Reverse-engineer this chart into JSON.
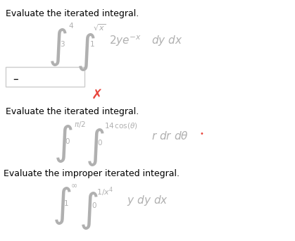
{
  "bg_color": "#ffffff",
  "title1": "Evaluate the iterated integral.",
  "title2": "Evaluate the iterated integral.",
  "title3": "Evaluate the improper iterated integral.",
  "cross_color": "#e8453c",
  "dot_color": "#e8453c",
  "text_color": "#000000",
  "gray_color": "#aaaaaa",
  "integral_gray": "#b0b0b0",
  "answer_dash_color": "#000000",
  "box_edge_color": "#cccccc"
}
